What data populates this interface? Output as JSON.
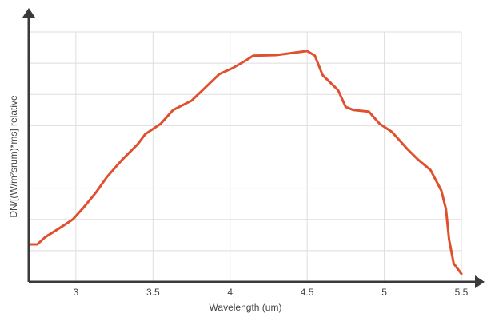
{
  "chart_data": {
    "type": "line",
    "xlabel": "Wavelength (um)",
    "ylabel": "DN/[(W/m²srum)*ms] relative",
    "xlim": [
      2.7,
      5.5
    ],
    "ylim": [
      0,
      8
    ],
    "xticks": [
      3,
      3.5,
      4,
      4.5,
      5,
      5.5
    ],
    "grid": true,
    "series": [
      {
        "color": "#e0502e",
        "x": [
          2.7,
          2.75,
          2.8,
          2.9,
          2.98,
          3.05,
          3.13,
          3.2,
          3.3,
          3.4,
          3.45,
          3.55,
          3.63,
          3.75,
          3.85,
          3.93,
          4.02,
          4.1,
          4.15,
          4.3,
          4.5,
          4.55,
          4.6,
          4.7,
          4.75,
          4.8,
          4.9,
          4.97,
          5.05,
          5.15,
          5.22,
          5.3,
          5.37,
          5.4,
          5.42,
          5.45,
          5.5
        ],
        "values": [
          1.2,
          1.2,
          1.43,
          1.74,
          2.0,
          2.38,
          2.86,
          3.35,
          3.91,
          4.4,
          4.73,
          5.06,
          5.5,
          5.8,
          6.27,
          6.65,
          6.85,
          7.08,
          7.24,
          7.26,
          7.39,
          7.24,
          6.62,
          6.14,
          5.6,
          5.5,
          5.45,
          5.06,
          4.8,
          4.25,
          3.91,
          3.58,
          2.92,
          2.33,
          1.36,
          0.59,
          0.26
        ]
      }
    ]
  }
}
